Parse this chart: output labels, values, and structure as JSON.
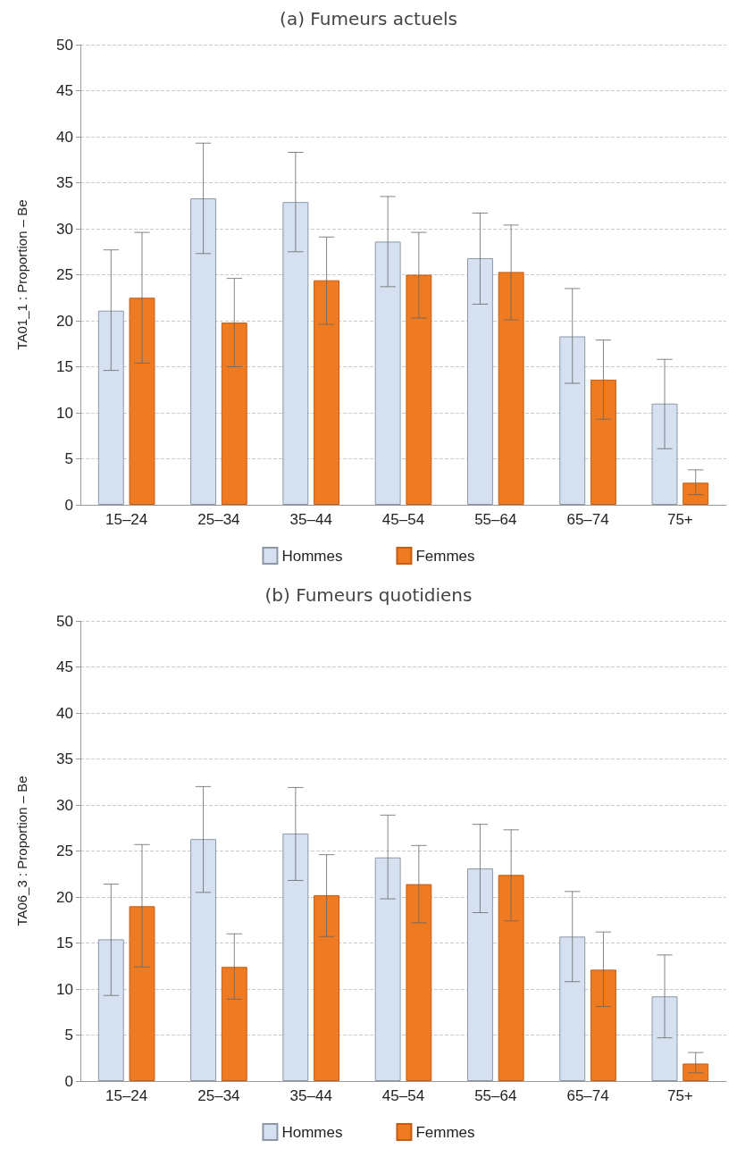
{
  "chart_data": [
    {
      "type": "bar",
      "title": "(a) Fumeurs actuels",
      "ylabel": "TA01_1 : Proportion – Be",
      "categories": [
        "15–24",
        "25–34",
        "35–44",
        "45–54",
        "55–64",
        "65–74",
        "75+"
      ],
      "series": [
        {
          "name": "Hommes",
          "color": "#d5e1f1",
          "values": [
            21.1,
            33.3,
            32.9,
            28.6,
            26.8,
            18.3,
            11.0
          ],
          "errors": [
            [
              14.6,
              27.7
            ],
            [
              27.3,
              39.3
            ],
            [
              27.5,
              38.3
            ],
            [
              23.7,
              33.5
            ],
            [
              21.8,
              31.7
            ],
            [
              13.2,
              23.5
            ],
            [
              6.1,
              15.8
            ]
          ]
        },
        {
          "name": "Femmes",
          "color": "#ee7a22",
          "values": [
            22.5,
            19.8,
            24.4,
            25.0,
            25.3,
            13.6,
            2.4
          ],
          "errors": [
            [
              15.4,
              29.6
            ],
            [
              15.0,
              24.6
            ],
            [
              19.6,
              29.1
            ],
            [
              20.3,
              29.6
            ],
            [
              20.1,
              30.4
            ],
            [
              9.3,
              17.9
            ],
            [
              1.1,
              3.8
            ]
          ]
        }
      ],
      "ylim": [
        0,
        50
      ],
      "yticks": [
        0,
        5,
        10,
        15,
        20,
        25,
        30,
        35,
        40,
        45,
        50
      ],
      "grid": "y",
      "legend": "bottom"
    },
    {
      "type": "bar",
      "title": "(b) Fumeurs quotidiens",
      "ylabel": "TA06_3 : Proportion – Be",
      "categories": [
        "15–24",
        "25–34",
        "35–44",
        "45–54",
        "55–64",
        "65–74",
        "75+"
      ],
      "series": [
        {
          "name": "Hommes",
          "color": "#d5e1f1",
          "values": [
            15.4,
            26.3,
            26.9,
            24.3,
            23.1,
            15.7,
            9.2
          ],
          "errors": [
            [
              9.3,
              21.4
            ],
            [
              20.5,
              32.0
            ],
            [
              21.8,
              31.9
            ],
            [
              19.8,
              28.9
            ],
            [
              18.3,
              27.9
            ],
            [
              10.8,
              20.6
            ],
            [
              4.7,
              13.7
            ]
          ]
        },
        {
          "name": "Femmes",
          "color": "#ee7a22",
          "values": [
            19.0,
            12.4,
            20.2,
            21.4,
            22.4,
            12.1,
            1.9
          ],
          "errors": [
            [
              12.4,
              25.7
            ],
            [
              8.9,
              16.0
            ],
            [
              15.7,
              24.6
            ],
            [
              17.2,
              25.6
            ],
            [
              17.4,
              27.3
            ],
            [
              8.1,
              16.2
            ],
            [
              0.9,
              3.1
            ]
          ]
        }
      ],
      "ylim": [
        0,
        50
      ],
      "yticks": [
        0,
        5,
        10,
        15,
        20,
        25,
        30,
        35,
        40,
        45,
        50
      ],
      "grid": "y",
      "legend": "bottom"
    }
  ]
}
